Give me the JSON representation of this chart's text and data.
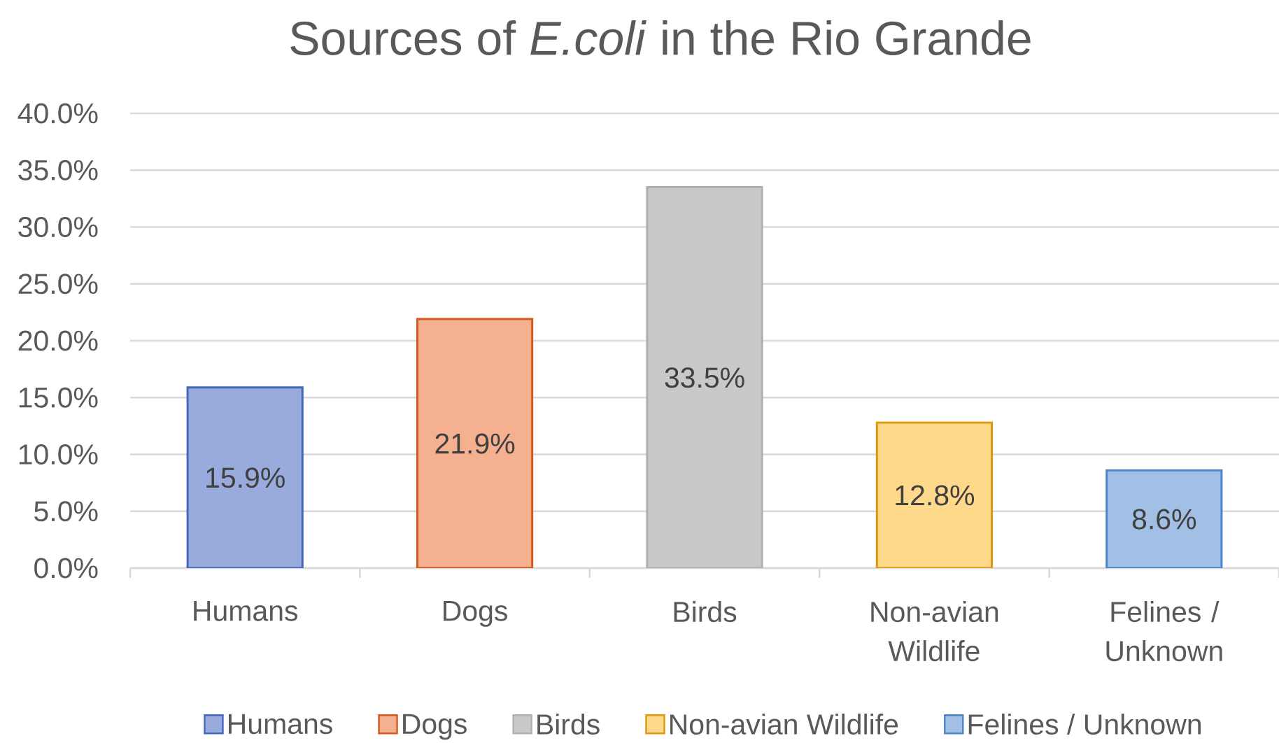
{
  "chart_data": {
    "type": "bar",
    "title": "Sources of *E.coli* in the Rio Grande",
    "categories": [
      "Humans",
      "Dogs",
      "Birds",
      "Non-avian Wildlife",
      "Felines / Unknown"
    ],
    "series": [
      {
        "name": "Humans",
        "color": "#98abdc",
        "values": [
          15.9,
          null,
          null,
          null,
          null
        ],
        "value_labels": [
          "15.9%",
          null,
          null,
          null,
          null
        ]
      },
      {
        "name": "Dogs",
        "color": "#f5b090",
        "values": [
          null,
          21.9,
          null,
          null,
          null
        ],
        "value_labels": [
          null,
          "21.9%",
          null,
          null,
          null
        ]
      },
      {
        "name": "Birds",
        "color": "#c9c9c9",
        "values": [
          null,
          null,
          33.5,
          null,
          null
        ],
        "value_labels": [
          null,
          null,
          "33.5%",
          null,
          null
        ]
      },
      {
        "name": "Non-avian Wildlife",
        "color": "#fed88b",
        "values": [
          null,
          null,
          null,
          12.8,
          null
        ],
        "value_labels": [
          null,
          null,
          null,
          "12.8%",
          null
        ]
      },
      {
        "name": "Felines / Unknown",
        "color": "#a2c0e5",
        "values": [
          null,
          null,
          null,
          null,
          8.6
        ],
        "value_labels": [
          null,
          null,
          null,
          null,
          "8.6%"
        ]
      }
    ],
    "ylim": [
      0,
      40
    ],
    "yticks": [
      {
        "value": 0,
        "label": "0.0%"
      },
      {
        "value": 5,
        "label": "5.0%"
      },
      {
        "value": 10,
        "label": "10.0%"
      },
      {
        "value": 15,
        "label": "15.0%"
      },
      {
        "value": 20,
        "label": "20.0%"
      },
      {
        "value": 25,
        "label": "25.0%"
      },
      {
        "value": 30,
        "label": "30.0%"
      },
      {
        "value": 35,
        "label": "35.0%"
      },
      {
        "value": 40,
        "label": "40.0%"
      }
    ],
    "grid": "y",
    "legend": "bottom"
  }
}
